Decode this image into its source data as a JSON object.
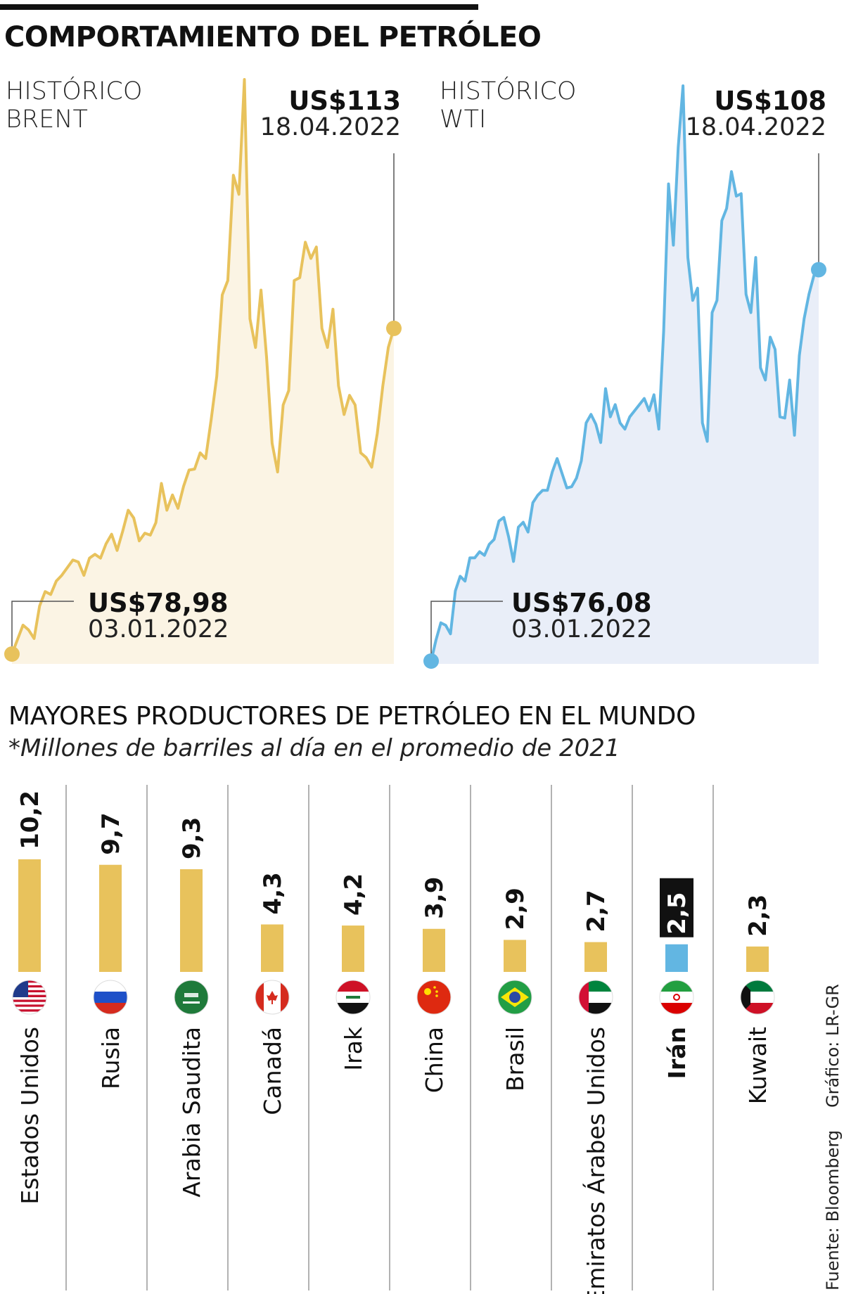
{
  "title": "COMPORTAMIENTO DEL PETRÓLEO",
  "brent": {
    "label_line1": "HISTÓRICO",
    "label_line2": "BRENT",
    "end_price": "US$113",
    "end_date": "18.04.2022",
    "start_price": "US$78,98",
    "start_date": "03.01.2022"
  },
  "wti": {
    "label_line1": "HISTÓRICO",
    "label_line2": "WTI",
    "end_price": "US$108",
    "end_date": "18.04.2022",
    "start_price": "US$76,08",
    "start_date": "03.01.2022"
  },
  "producers": {
    "title": "MAYORES PRODUCTORES DE PETRÓLEO EN EL MUNDO",
    "note": "*Millones de barriles al día en el promedio de 2021"
  },
  "source": "Fuente: Bloomberg",
  "graphic": "Gráfico: LR-GR",
  "colors": {
    "brent_line": "#E8C25C",
    "brent_fill": "#FBF4E4",
    "wti_line": "#62B6E2",
    "wti_fill": "#E9EEF8",
    "bar": "#E8C25C",
    "highlight_bar": "#62B6E2"
  },
  "chart_data": [
    {
      "type": "line",
      "series": [
        {
          "name": "BRENT",
          "values": [
            78.98,
            80.5,
            82.0,
            81.5,
            80.6,
            84.0,
            85.5,
            85.2,
            86.6,
            87.2,
            88.0,
            88.8,
            88.6,
            87.2,
            89.0,
            89.4,
            89.0,
            90.5,
            91.5,
            89.8,
            91.8,
            94.0,
            93.2,
            90.8,
            91.6,
            91.4,
            92.7,
            96.8,
            94.0,
            95.6,
            94.2,
            96.5,
            98.2,
            98.3,
            100.0,
            99.4,
            103.5,
            108.0,
            116.5,
            118.0,
            129.0,
            127.0,
            139.0,
            114.0,
            111.0,
            117.0,
            110.0,
            101.0,
            98.0,
            105.0,
            106.5,
            118.0,
            118.3,
            122.0,
            120.3,
            121.5,
            113.0,
            111.0,
            115.0,
            107.0,
            104.0,
            106.0,
            105.0,
            100.0,
            99.5,
            98.5,
            102.0,
            107.0,
            111.0,
            113.0
          ],
          "start_label": "US$78,98",
          "end_label": "US$113"
        }
      ]
    },
    {
      "type": "line",
      "series": [
        {
          "name": "WTI",
          "values": [
            76.08,
            77.8,
            79.2,
            79.0,
            78.3,
            81.8,
            83.0,
            82.6,
            84.5,
            84.5,
            85.0,
            84.7,
            85.6,
            86.0,
            87.5,
            87.8,
            86.2,
            84.2,
            87.0,
            87.4,
            86.6,
            89.0,
            89.6,
            90.0,
            90.0,
            91.5,
            92.6,
            91.4,
            90.2,
            90.3,
            91.0,
            92.4,
            95.5,
            96.2,
            95.4,
            93.9,
            98.3,
            96.0,
            97.0,
            95.5,
            95.0,
            96.0,
            96.5,
            97.0,
            97.5,
            96.5,
            97.8,
            95.0,
            103.0,
            115.0,
            110.0,
            118.0,
            123.0,
            109.0,
            105.5,
            106.5,
            95.5,
            94.0,
            104.5,
            105.5,
            112.0,
            113.0,
            116.0,
            114.0,
            114.2,
            106.0,
            104.5,
            109.0,
            100.0,
            99.0,
            102.5,
            101.5,
            96.0,
            95.9,
            99.0,
            94.5,
            101.0,
            104.0,
            106.0,
            107.5,
            108.0
          ]
        }
      ]
    },
    {
      "type": "bar",
      "categories": [
        "Estados Unidos",
        "Rusia",
        "Arabia Saudita",
        "Canadá",
        "Irak",
        "China",
        "Brasil",
        "Emiratos Árabes Unidos",
        "Irán",
        "Kuwait"
      ],
      "values": [
        10.2,
        9.7,
        9.3,
        4.3,
        4.2,
        3.9,
        2.9,
        2.7,
        2.5,
        2.3
      ],
      "labels": [
        "10,2",
        "9,7",
        "9,3",
        "4,3",
        "4,2",
        "3,9",
        "2,9",
        "2,7",
        "2,5",
        "2,3"
      ],
      "highlight": "Irán"
    }
  ]
}
